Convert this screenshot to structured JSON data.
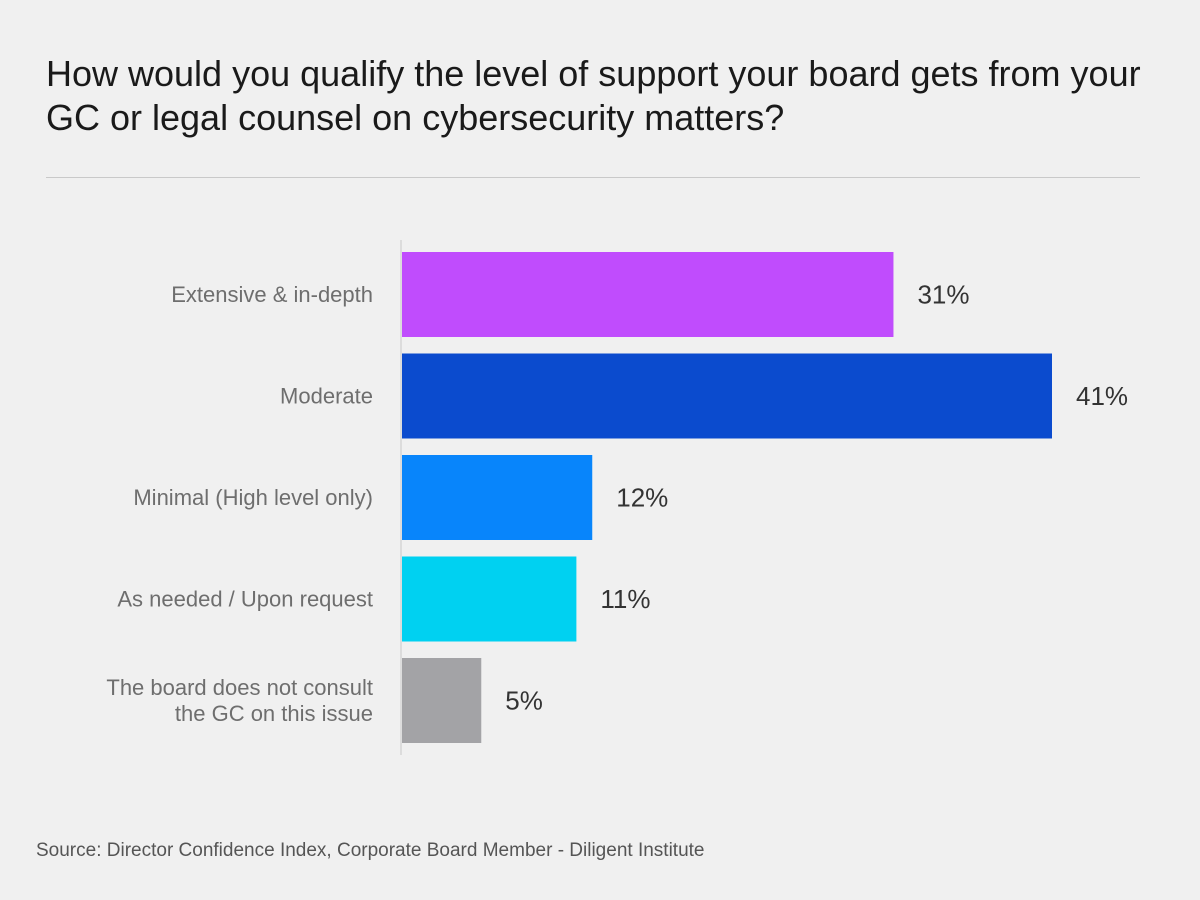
{
  "title": "How would you qualify the level of support your board gets from your GC or legal counsel on cybersecurity matters?",
  "source": "Source: Director Confidence Index, Corporate Board Member - Diligent Institute",
  "chart_data": {
    "type": "bar",
    "orientation": "horizontal",
    "categories": [
      [
        "Extensive & in-depth"
      ],
      [
        "Moderate"
      ],
      [
        "Minimal (High level only)"
      ],
      [
        "As needed / Upon request"
      ],
      [
        "The board does not consult",
        "the GC on this issue"
      ]
    ],
    "values": [
      31,
      41,
      12,
      11,
      5
    ],
    "value_labels": [
      "31%",
      "41%",
      "12%",
      "11%",
      "5%"
    ],
    "colors": [
      "#c04cfd",
      "#0b4bce",
      "#0885fb",
      "#00d1f1",
      "#a3a3a6"
    ],
    "xlim": [
      0,
      41
    ],
    "grid": false,
    "legend": "none"
  }
}
